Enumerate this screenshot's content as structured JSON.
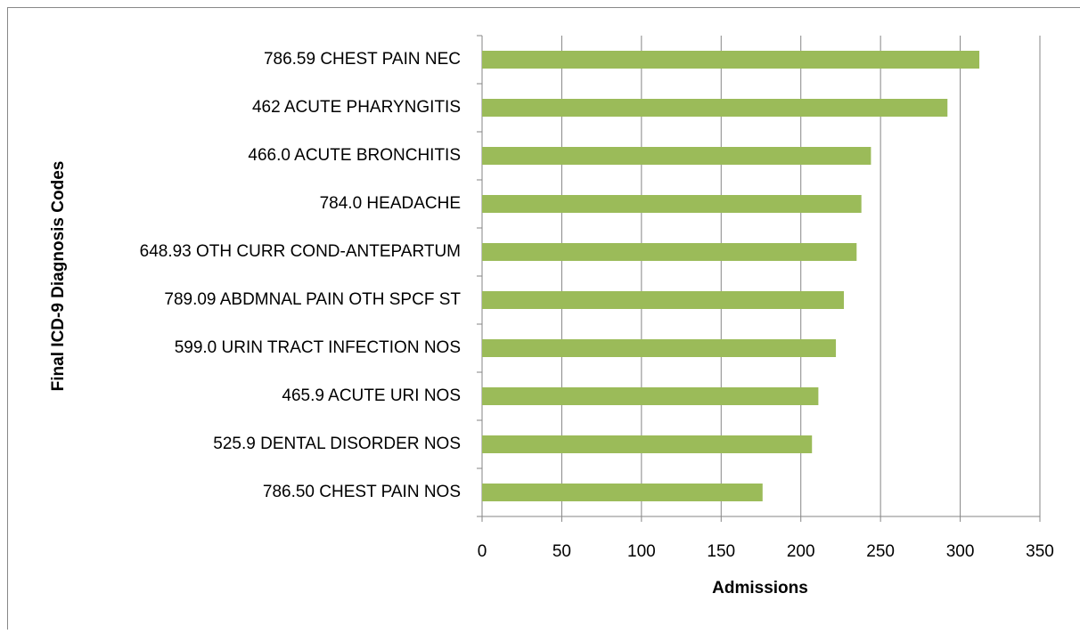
{
  "chart_data": {
    "type": "barh",
    "categories": [
      "786.59 CHEST PAIN NEC",
      "462 ACUTE PHARYNGITIS",
      "466.0 ACUTE BRONCHITIS",
      "784.0 HEADACHE",
      "648.93 OTH CURR COND-ANTEPARTUM",
      "789.09 ABDMNAL PAIN OTH SPCF ST",
      "599.0 URIN TRACT INFECTION NOS",
      "465.9 ACUTE URI NOS",
      "525.9 DENTAL DISORDER NOS",
      "786.50 CHEST PAIN NOS"
    ],
    "values": [
      312,
      292,
      244,
      238,
      235,
      227,
      222,
      211,
      207,
      176
    ],
    "color": "#9bbb59",
    "xlim": [
      0,
      350
    ],
    "xticks": [
      0,
      50,
      100,
      150,
      200,
      250,
      300,
      350
    ],
    "xlabel": "Admissions",
    "ylabel": "Final ICD-9 Diagnosis Codes",
    "grid": true
  }
}
